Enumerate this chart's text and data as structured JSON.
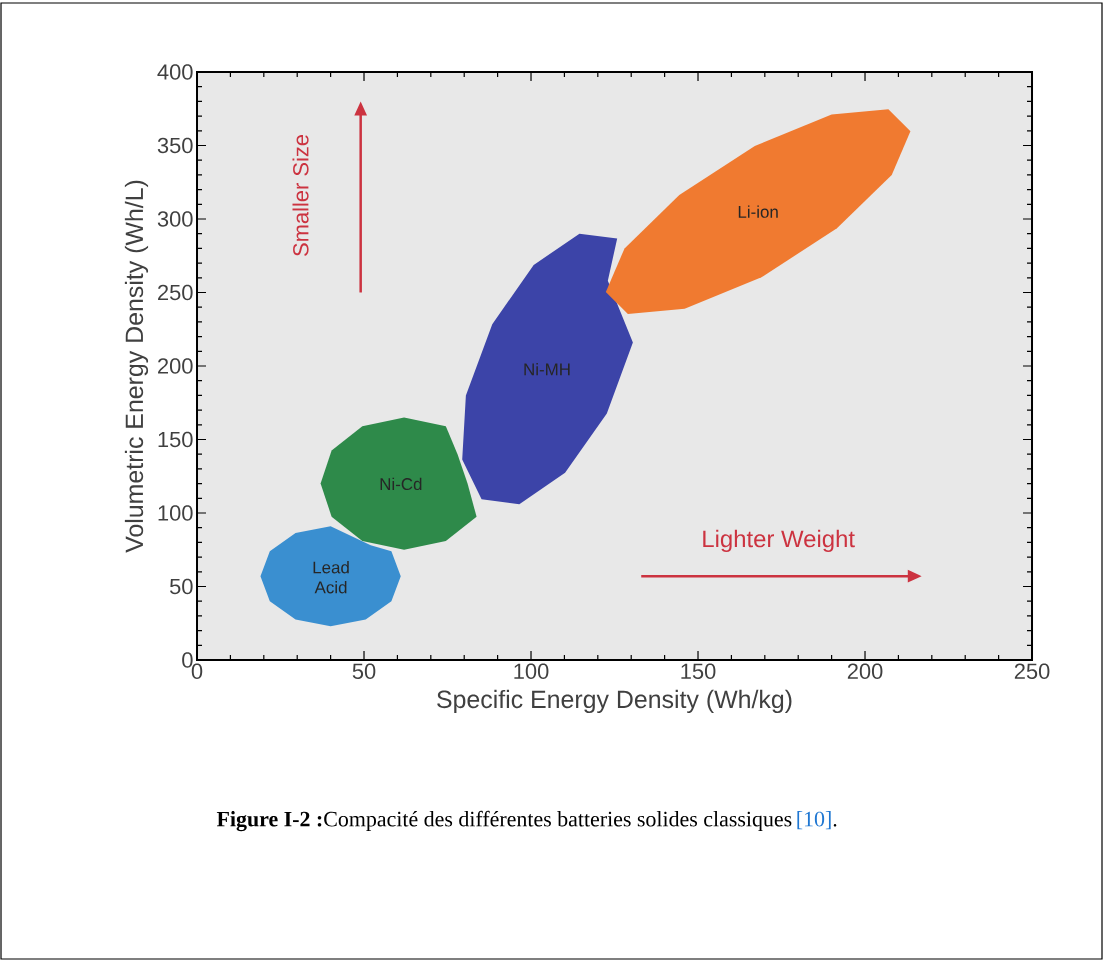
{
  "chart_data": {
    "type": "area",
    "xlabel": "Specific Energy Density (Wh/kg)",
    "ylabel": "Volumetric Energy Density (Wh/L)",
    "xlim": [
      0,
      250
    ],
    "ylim": [
      0,
      400
    ],
    "xticks": [
      0,
      50,
      100,
      150,
      200,
      250
    ],
    "yticks": [
      0,
      50,
      100,
      150,
      200,
      250,
      300,
      350,
      400
    ],
    "series": [
      {
        "name": "Lead Acid",
        "color": "#3a8fd0",
        "x": [
          61,
          58.2,
          52,
          40,
          29.5,
          21.8,
          19,
          21.8,
          29.5,
          40,
          50.5,
          58.2
        ],
        "values": [
          57,
          74,
          78,
          91,
          86.4,
          74,
          57,
          40,
          27.6,
          23,
          27.6,
          40
        ]
      },
      {
        "name": "Ni-Cd",
        "color": "#2e8a4a",
        "x": [
          81,
          78,
          74.5,
          62,
          49.5,
          40.3,
          37,
          40.3,
          49.5,
          62,
          74.5,
          83.7
        ],
        "values": [
          120,
          140,
          159,
          165,
          159,
          142.5,
          120,
          97.5,
          81,
          75,
          81,
          97.5
        ]
      },
      {
        "name": "Ni-MH",
        "color": "#3c44a8",
        "x": [
          130.5,
          123,
          125.8,
          114.5,
          100.8,
          88.4,
          80.5,
          79.4,
          85.2,
          96.5,
          110.2,
          122.7
        ],
        "values": [
          216,
          258,
          286.7,
          290,
          268.7,
          228.4,
          180,
          136.4,
          109.3,
          106,
          127.3,
          167.6
        ]
      },
      {
        "name": "Li-ion",
        "color": "#f07a30",
        "x": [
          208,
          213.6,
          207,
          190,
          167,
          144.4,
          128,
          122.4,
          129,
          146,
          169,
          191.6
        ],
        "values": [
          330,
          359.7,
          374.7,
          371,
          349.7,
          316.3,
          280,
          250.3,
          235.3,
          239,
          260.3,
          293.7
        ]
      }
    ],
    "annotations": [
      "Smaller Size",
      "Lighter Weight",
      "**Figure I-2 :**Compacité des différentes batteries solides classiques",
      "[10]",
      "."
    ]
  }
}
